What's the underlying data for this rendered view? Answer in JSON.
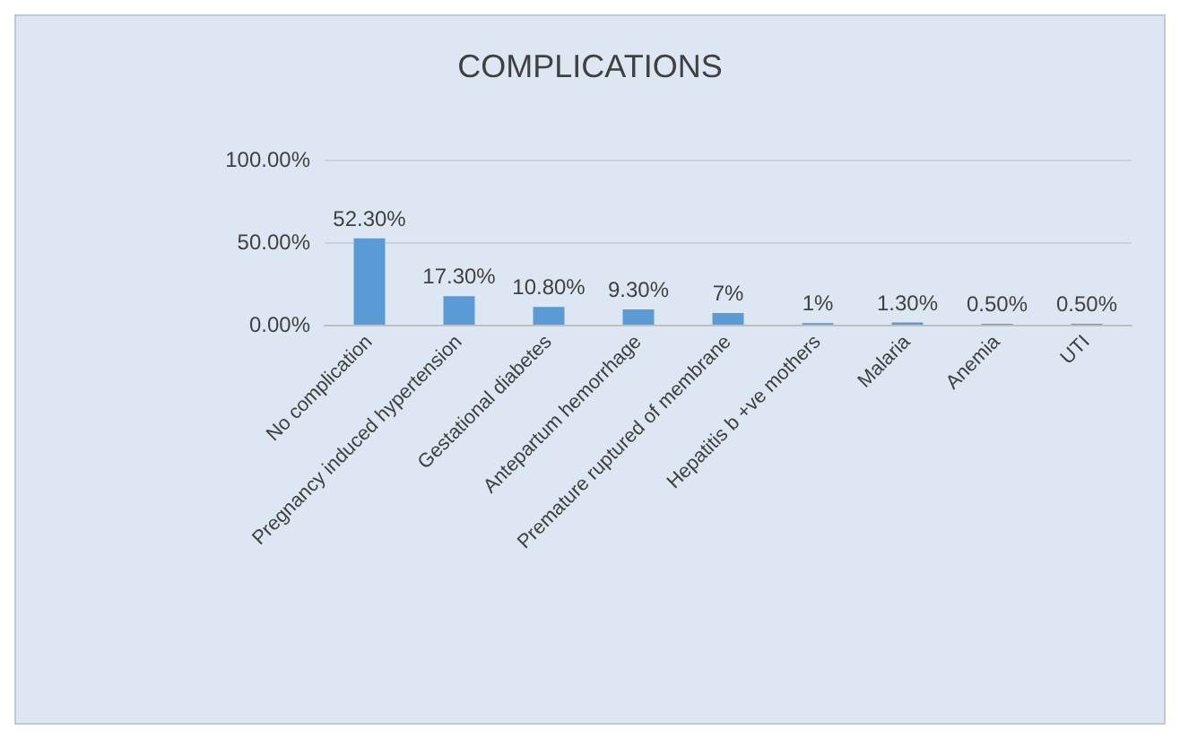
{
  "chart_data": {
    "type": "bar",
    "title": "COMPLICATIONS",
    "categories": [
      "No complication",
      "Pregnancy induced hypertension",
      "Gestational diabetes",
      "Antepartum hemorrhage",
      "Premature ruptured of membrane",
      "Hepatitis b +ve mothers",
      "Malaria",
      "Anemia",
      "UTI"
    ],
    "values": [
      52.3,
      17.3,
      10.8,
      9.3,
      7,
      1,
      1.3,
      0.5,
      0.5
    ],
    "value_labels": [
      "52.30%",
      "17.30%",
      "10.80%",
      "9.30%",
      "7%",
      "1%",
      "1.30%",
      "0.50%",
      "0.50%"
    ],
    "color": "#5b9bd5",
    "ylim": [
      0,
      100
    ],
    "yticks": [
      {
        "value": 0,
        "label": "0.00%"
      },
      {
        "value": 50,
        "label": "50.00%"
      },
      {
        "value": 100,
        "label": "100.00%"
      }
    ],
    "grid": "y"
  }
}
